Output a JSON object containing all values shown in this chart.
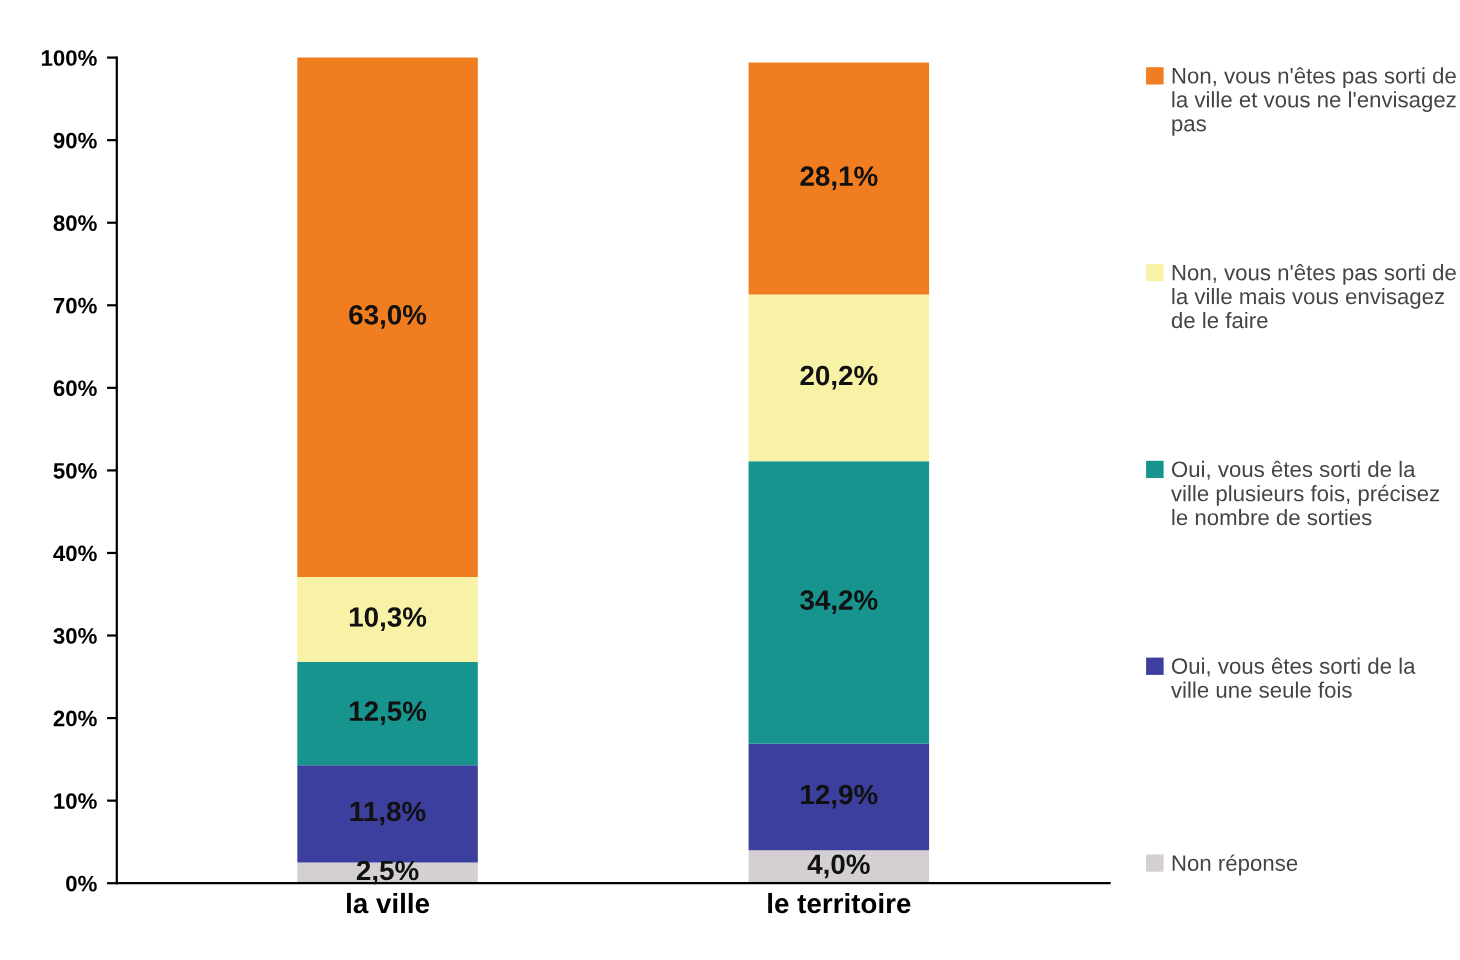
{
  "chart_data": {
    "type": "bar",
    "stacked": true,
    "categories": [
      "la ville",
      "le territoire"
    ],
    "series": [
      {
        "name": "Non réponse",
        "color": "#d4cfd2",
        "values": [
          2.5,
          4.0
        ],
        "value_labels": [
          "2,5%",
          "4,0%"
        ]
      },
      {
        "name": "Oui, vous êtes sorti de la ville une seule fois",
        "color": "#3d3f9e",
        "values": [
          11.8,
          12.9
        ],
        "value_labels": [
          "11,8%",
          "12,9%"
        ]
      },
      {
        "name": "Oui, vous êtes sorti de la ville plusieurs fois, précisez le nombre de sorties",
        "color": "#18948f",
        "values": [
          12.5,
          34.2
        ],
        "value_labels": [
          "12,5%",
          "34,2%"
        ]
      },
      {
        "name": "Non, vous n'êtes pas sorti de la ville mais vous envisagez de le faire",
        "color": "#f7f2a6",
        "values": [
          10.3,
          20.2
        ],
        "value_labels": [
          "10,3%",
          "20,2%"
        ]
      },
      {
        "name": "Non, vous n'êtes pas sorti de la ville et vous ne l'envisagez pas",
        "color": "#f07d1f",
        "values": [
          63.0,
          28.1
        ],
        "value_labels": [
          "63,0%",
          "28,1%"
        ]
      }
    ],
    "ylim": [
      0,
      100
    ],
    "yticks": [
      {
        "value": 0,
        "label": "0%"
      },
      {
        "value": 10,
        "label": "10%"
      },
      {
        "value": 20,
        "label": "20%"
      },
      {
        "value": 30,
        "label": "30%"
      },
      {
        "value": 40,
        "label": "40%"
      },
      {
        "value": 50,
        "label": "50%"
      },
      {
        "value": 60,
        "label": "60%"
      },
      {
        "value": 70,
        "label": "70%"
      },
      {
        "value": 80,
        "label": "80%"
      },
      {
        "value": 90,
        "label": "90%"
      },
      {
        "value": 100,
        "label": "100%"
      }
    ],
    "grid": false,
    "legend": "right"
  }
}
